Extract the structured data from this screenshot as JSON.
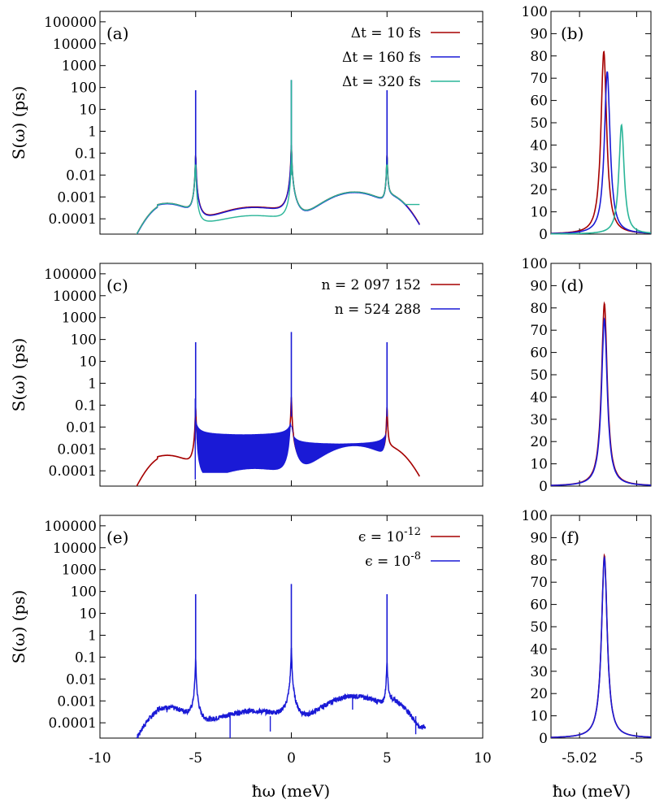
{
  "figure": {
    "ylabel_left": "S(ω) (ps)",
    "xlabel_left": "ħω (meV)",
    "xlabel_right": "ħω (meV)"
  },
  "colors": {
    "red": "#a50000",
    "blue": "#1a1ad6",
    "green": "#2ab598"
  },
  "chart_data": [
    {
      "panel": "(a)",
      "type": "line",
      "ylog": true,
      "xlim": [
        -10,
        10
      ],
      "ylim": [
        2e-05,
        300000
      ],
      "yticks": [
        "0.0001",
        "0.001",
        "0.01",
        "0.1",
        "1",
        "10",
        "100",
        "1000",
        "10000",
        "100000"
      ],
      "legend": "top-right",
      "series": [
        {
          "name": "Δt = 10 fs",
          "color": "#a50000"
        },
        {
          "name": "Δt = 160 fs",
          "color": "#1a1ad6"
        },
        {
          "name": "Δt = 320 fs",
          "color": "#2ab598"
        }
      ]
    },
    {
      "panel": "(b)",
      "type": "line",
      "ylog": false,
      "xlim": [
        -5.03,
        -4.995
      ],
      "ylim": [
        0,
        100
      ],
      "yticks": [
        "0",
        "10",
        "20",
        "30",
        "40",
        "50",
        "60",
        "70",
        "80",
        "90",
        "100"
      ],
      "series": [
        {
          "name": "Δt = 10 fs",
          "color": "#a50000",
          "peak_x": -5.0115,
          "peak_y": 82,
          "width": 0.0012
        },
        {
          "name": "Δt = 160 fs",
          "color": "#1a1ad6",
          "peak_x": -5.0103,
          "peak_y": 73,
          "width": 0.0012
        },
        {
          "name": "Δt = 320 fs",
          "color": "#2ab598",
          "peak_x": -5.0053,
          "peak_y": 49,
          "width": 0.0011
        }
      ]
    },
    {
      "panel": "(c)",
      "type": "line",
      "ylog": true,
      "xlim": [
        -10,
        10
      ],
      "ylim": [
        2e-05,
        300000
      ],
      "yticks": [
        "0.0001",
        "0.001",
        "0.01",
        "0.1",
        "1",
        "10",
        "100",
        "1000",
        "10000",
        "100000"
      ],
      "legend": "top-right",
      "series": [
        {
          "name": "n = 2 097 152",
          "color": "#a50000"
        },
        {
          "name": "n = 524 288",
          "color": "#1a1ad6"
        }
      ]
    },
    {
      "panel": "(d)",
      "type": "line",
      "ylog": false,
      "xlim": [
        -5.03,
        -4.995
      ],
      "ylim": [
        0,
        100
      ],
      "yticks": [
        "0",
        "10",
        "20",
        "30",
        "40",
        "50",
        "60",
        "70",
        "80",
        "90",
        "100"
      ],
      "series": [
        {
          "name": "n = 2 097 152",
          "color": "#a50000",
          "peak_x": -5.0113,
          "peak_y": 82,
          "width": 0.0012
        },
        {
          "name": "n = 524 288",
          "color": "#1a1ad6",
          "peak_x": -5.0113,
          "peak_y": 75,
          "width": 0.0012
        }
      ]
    },
    {
      "panel": "(e)",
      "type": "line",
      "ylog": true,
      "xlim": [
        -10,
        10
      ],
      "ylim": [
        2e-05,
        300000
      ],
      "xticks": [
        "-10",
        "-5",
        "0",
        "5",
        "10"
      ],
      "yticks": [
        "0.0001",
        "0.001",
        "0.01",
        "0.1",
        "1",
        "10",
        "100",
        "1000",
        "10000",
        "100000"
      ],
      "legend": "top-right",
      "series": [
        {
          "name": "ϵ = 10^-12",
          "color": "#a50000"
        },
        {
          "name": "ϵ = 10^-8",
          "color": "#1a1ad6"
        }
      ]
    },
    {
      "panel": "(f)",
      "type": "line",
      "ylog": false,
      "xlim": [
        -5.03,
        -4.995
      ],
      "ylim": [
        0,
        100
      ],
      "xticks": [
        "-5.02",
        "-5"
      ],
      "yticks": [
        "0",
        "10",
        "20",
        "30",
        "40",
        "50",
        "60",
        "70",
        "80",
        "90",
        "100"
      ],
      "series": [
        {
          "name": "ϵ = 10^-12",
          "color": "#a50000",
          "peak_x": -5.0113,
          "peak_y": 82,
          "width": 0.0012
        },
        {
          "name": "ϵ = 10^-8",
          "color": "#1a1ad6",
          "peak_x": -5.0113,
          "peak_y": 81,
          "width": 0.0012
        }
      ]
    }
  ]
}
